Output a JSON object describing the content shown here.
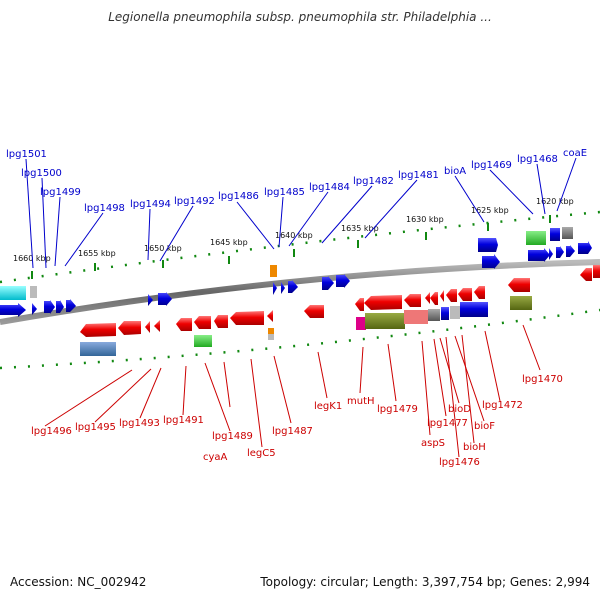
{
  "title": "Legionella pneumophila subsp. pneumophila str. Philadelphia ...",
  "footer": {
    "accession": "Accession: NC_002942",
    "summary": "Topology: circular; Length: 3,397,754 bp; Genes: 2,994"
  },
  "colors": {
    "forward_gene": "#0000dd",
    "reverse_gene": "#ee0000",
    "forward_label": "#0000cc",
    "reverse_label": "#cc0000",
    "backbone": "#777777",
    "tick": "#118811"
  },
  "scale_labels": [
    "1620 kbp",
    "1625 kbp",
    "1630 kbp",
    "1635 kbp",
    "1640 kbp",
    "1645 kbp",
    "1650 kbp",
    "1655 kbp",
    "1660 kbp"
  ],
  "forward_genes": [
    "lpg1501",
    "lpg1500",
    "lpg1499",
    "lpg1498",
    "lpg1494",
    "lpg1492",
    "lpg1486",
    "lpg1485",
    "lpg1484",
    "lpg1482",
    "lpg1481",
    "bioA",
    "lpg1469",
    "lpg1468",
    "coaE"
  ],
  "reverse_genes": [
    "lpg1496",
    "lpg1495",
    "lpg1493",
    "lpg1491",
    "lpg1489",
    "cyaA",
    "legC5",
    "lpg1487",
    "legK1",
    "mutH",
    "lpg1479",
    "aspS",
    "lpg1477",
    "bioD",
    "lpg1476",
    "bioF",
    "bioH",
    "lpg1472",
    "lpg1470"
  ]
}
